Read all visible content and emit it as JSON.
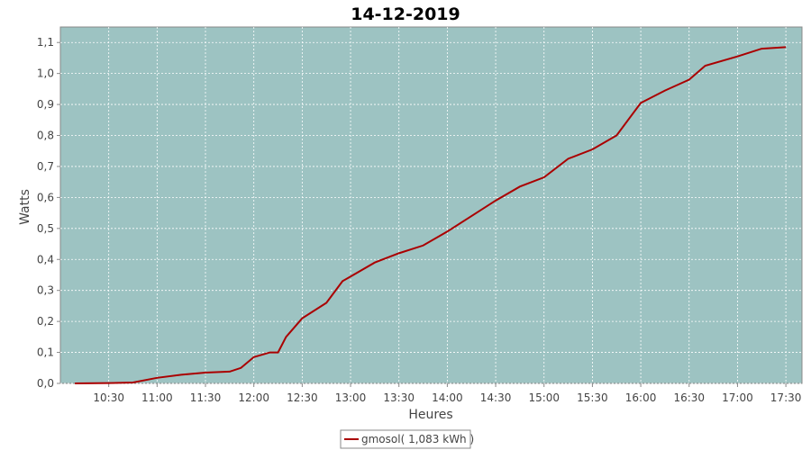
{
  "chart_data": {
    "type": "line",
    "title": "14-12-2019",
    "x_label": "Heures",
    "y_label": "Watts",
    "x": [
      "10:09",
      "10:30",
      "10:45",
      "11:00",
      "11:15",
      "11:30",
      "11:45",
      "11:52",
      "12:00",
      "12:10",
      "12:15",
      "12:20",
      "12:30",
      "12:45",
      "12:55",
      "13:00",
      "13:15",
      "13:30",
      "13:45",
      "14:00",
      "14:15",
      "14:30",
      "14:45",
      "15:00",
      "15:15",
      "15:30",
      "15:45",
      "16:00",
      "16:15",
      "16:30",
      "16:40",
      "17:00",
      "17:15",
      "17:30"
    ],
    "series": [
      {
        "name": "gmosol( 1,083 kWh )",
        "color": "#aa0000",
        "values": [
          0.0,
          0.001,
          0.003,
          0.018,
          0.028,
          0.035,
          0.038,
          0.05,
          0.085,
          0.1,
          0.1,
          0.15,
          0.21,
          0.26,
          0.33,
          0.345,
          0.39,
          0.42,
          0.445,
          0.49,
          0.54,
          0.59,
          0.635,
          0.665,
          0.725,
          0.755,
          0.8,
          0.905,
          0.945,
          0.98,
          1.025,
          1.055,
          1.08,
          1.085
        ]
      }
    ],
    "xlim": [
      "10:00",
      "17:40"
    ],
    "xticks": [
      "10:30",
      "11:00",
      "11:30",
      "12:00",
      "12:30",
      "13:00",
      "13:30",
      "14:00",
      "14:30",
      "15:00",
      "15:30",
      "16:00",
      "16:30",
      "17:00",
      "17:30"
    ],
    "ylim": [
      0,
      1.15
    ],
    "yticks": [
      {
        "value": 0,
        "label": "0,0"
      },
      {
        "value": 0.1,
        "label": "0,1"
      },
      {
        "value": 0.2,
        "label": "0,2"
      },
      {
        "value": 0.3,
        "label": "0,3"
      },
      {
        "value": 0.4,
        "label": "0,4"
      },
      {
        "value": 0.5,
        "label": "0,5"
      },
      {
        "value": 0.6,
        "label": "0,6"
      },
      {
        "value": 0.7,
        "label": "0,7"
      },
      {
        "value": 0.8,
        "label": "0,8"
      },
      {
        "value": 0.9,
        "label": "0,9"
      },
      {
        "value": 1.0,
        "label": "1,0"
      },
      {
        "value": 1.1,
        "label": "1,1"
      }
    ],
    "grid": true,
    "plot_background": "#9dc3c2",
    "legend": "bottom"
  }
}
